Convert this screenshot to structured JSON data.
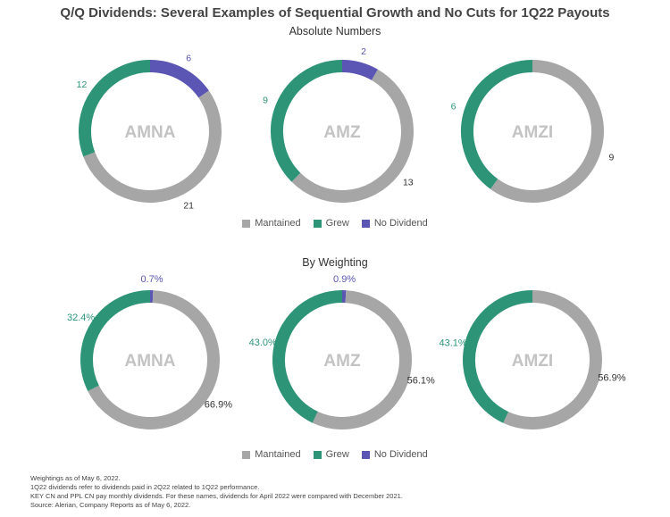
{
  "title": "Q/Q Dividends: Several Examples of Sequential Growth and No Cuts for 1Q22 Payouts",
  "colors": {
    "Mantained": "#a6a6a6",
    "Grew": "#2e9478",
    "No Dividend": "#5b56b4"
  },
  "legend": [
    "Mantained",
    "Grew",
    "No Dividend"
  ],
  "chart_data": [
    {
      "type": "pie",
      "subtitle": "Absolute Numbers",
      "charts": [
        {
          "name": "AMNA",
          "values": {
            "Mantained": 21,
            "Grew": 12,
            "No Dividend": 6
          },
          "labels": {
            "Mantained": "21",
            "Grew": "12",
            "No Dividend": "6"
          }
        },
        {
          "name": "AMZ",
          "values": {
            "Mantained": 13,
            "Grew": 9,
            "No Dividend": 2
          },
          "labels": {
            "Mantained": "13",
            "Grew": "9",
            "No Dividend": "2"
          }
        },
        {
          "name": "AMZI",
          "values": {
            "Mantained": 9,
            "Grew": 6,
            "No Dividend": 0
          },
          "labels": {
            "Mantained": "9",
            "Grew": "6"
          }
        }
      ]
    },
    {
      "type": "pie",
      "subtitle": "By Weighting",
      "charts": [
        {
          "name": "AMNA",
          "values": {
            "Mantained": 66.9,
            "Grew": 32.4,
            "No Dividend": 0.7
          },
          "labels": {
            "Mantained": "66.9%",
            "Grew": "32.4%",
            "No Dividend": "0.7%"
          }
        },
        {
          "name": "AMZ",
          "values": {
            "Mantained": 56.1,
            "Grew": 43.0,
            "No Dividend": 0.9
          },
          "labels": {
            "Mantained": "56.1%",
            "Grew": "43.0%",
            "No Dividend": "0.9%"
          }
        },
        {
          "name": "AMZI",
          "values": {
            "Mantained": 56.9,
            "Grew": 43.1,
            "No Dividend": 0
          },
          "labels": {
            "Mantained": "56.9%",
            "Grew": "43.1%"
          }
        }
      ]
    }
  ],
  "footnotes": [
    "Weightings as of May 6, 2022.",
    "1Q22 dividends refer to dividends paid in 2Q22 related to 1Q22 performance.",
    "KEY CN and PPL CN pay monthly dividends. For these names, dividends for April 2022 were compared with December 2021.",
    "Source: Alerian, Company Reports as of May 6, 2022."
  ]
}
